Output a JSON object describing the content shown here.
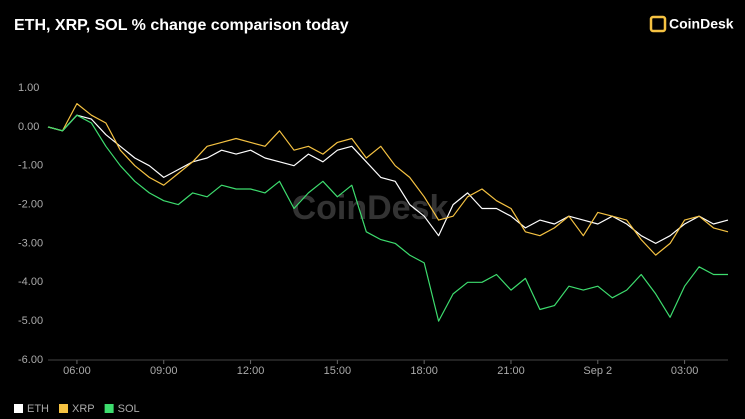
{
  "chart_data": {
    "type": "line",
    "title": "ETH, XRP, SOL % change comparison today",
    "brand": "CoinDesk",
    "watermark": "CoinDesk",
    "x": [
      "05:00",
      "05:30",
      "06:00",
      "06:30",
      "07:00",
      "07:30",
      "08:00",
      "08:30",
      "09:00",
      "09:30",
      "10:00",
      "10:30",
      "11:00",
      "11:30",
      "12:00",
      "12:30",
      "13:00",
      "13:30",
      "14:00",
      "14:30",
      "15:00",
      "15:30",
      "16:00",
      "16:30",
      "17:00",
      "17:30",
      "18:00",
      "18:30",
      "19:00",
      "19:30",
      "20:00",
      "20:30",
      "21:00",
      "21:30",
      "22:00",
      "22:30",
      "23:00",
      "23:30",
      "00:00",
      "00:30",
      "01:00",
      "01:30",
      "02:00",
      "02:30",
      "03:00",
      "03:30",
      "04:00",
      "04:30"
    ],
    "xticks": [
      "06:00",
      "09:00",
      "12:00",
      "15:00",
      "18:00",
      "21:00",
      {
        "value": "00:00",
        "label": "Sep 2"
      },
      "03:00"
    ],
    "series": [
      {
        "name": "ETH",
        "color": "#ffffff",
        "values": [
          0,
          -0.1,
          0.3,
          0.2,
          -0.2,
          -0.5,
          -0.8,
          -1.0,
          -1.3,
          -1.1,
          -0.9,
          -0.8,
          -0.6,
          -0.7,
          -0.6,
          -0.8,
          -0.9,
          -1.0,
          -0.7,
          -0.9,
          -0.6,
          -0.5,
          -0.9,
          -1.3,
          -1.4,
          -2.0,
          -2.3,
          -2.8,
          -2.0,
          -1.7,
          -2.1,
          -2.1,
          -2.3,
          -2.6,
          -2.4,
          -2.5,
          -2.3,
          -2.4,
          -2.5,
          -2.3,
          -2.5,
          -2.8,
          -3.0,
          -2.8,
          -2.5,
          -2.3,
          -2.5,
          -2.4
        ]
      },
      {
        "name": "XRP",
        "color": "#f5c242",
        "values": [
          0,
          -0.1,
          0.6,
          0.3,
          0.1,
          -0.6,
          -1.0,
          -1.3,
          -1.5,
          -1.2,
          -0.9,
          -0.5,
          -0.4,
          -0.3,
          -0.4,
          -0.5,
          -0.1,
          -0.6,
          -0.5,
          -0.7,
          -0.4,
          -0.3,
          -0.8,
          -0.5,
          -1.0,
          -1.3,
          -1.8,
          -2.4,
          -2.3,
          -1.8,
          -1.6,
          -1.9,
          -2.1,
          -2.7,
          -2.8,
          -2.6,
          -2.3,
          -2.8,
          -2.2,
          -2.3,
          -2.4,
          -2.9,
          -3.3,
          -3.0,
          -2.4,
          -2.3,
          -2.6,
          -2.7
        ]
      },
      {
        "name": "SOL",
        "color": "#3ddc6e",
        "values": [
          0,
          -0.1,
          0.3,
          0.1,
          -0.5,
          -1.0,
          -1.4,
          -1.7,
          -1.9,
          -2.0,
          -1.7,
          -1.8,
          -1.5,
          -1.6,
          -1.6,
          -1.7,
          -1.4,
          -2.1,
          -1.7,
          -1.4,
          -1.8,
          -1.5,
          -2.7,
          -2.9,
          -3.0,
          -3.3,
          -3.5,
          -5.0,
          -4.3,
          -4.0,
          -4.0,
          -3.8,
          -4.2,
          -3.9,
          -4.7,
          -4.6,
          -4.1,
          -4.2,
          -4.1,
          -4.4,
          -4.2,
          -3.8,
          -4.3,
          -4.9,
          -4.1,
          -3.6,
          -3.8,
          -3.8
        ]
      }
    ],
    "ylim": [
      -6,
      1.5
    ],
    "yticks": [
      {
        "value": 1,
        "label": "1.00"
      },
      {
        "value": 0,
        "label": "0.00"
      },
      {
        "value": -1,
        "label": "-1.00"
      },
      {
        "value": -2,
        "label": "-2.00"
      },
      {
        "value": -3,
        "label": "-3.00"
      },
      {
        "value": -4,
        "label": "-4.00"
      },
      {
        "value": -5,
        "label": "-5.00"
      },
      {
        "value": -6,
        "label": "-6.00"
      }
    ],
    "grid": false
  }
}
